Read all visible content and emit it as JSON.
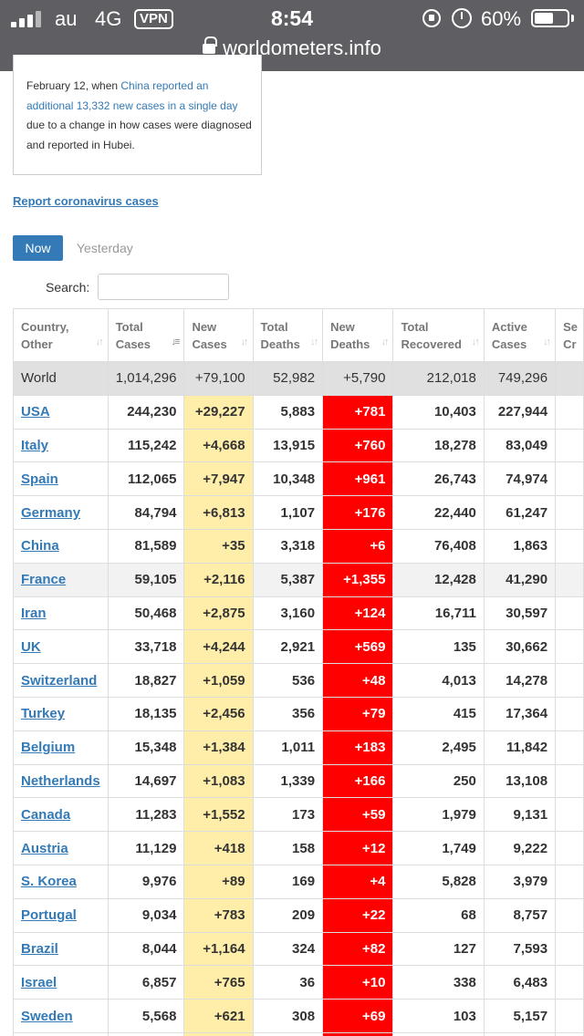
{
  "status_bar": {
    "carrier": "au",
    "network": "4G",
    "vpn": "VPN",
    "time": "8:54",
    "battery": "60%",
    "battery_level": 0.6
  },
  "url_bar": {
    "domain": "worldometers.info"
  },
  "note": {
    "text_before": "February 12, when ",
    "link_text": "China reported an additional 13,332 new cases in a single day",
    "text_after": " due to a change in how cases were diagnosed and reported in Hubei."
  },
  "report_link": "Report coronavirus cases",
  "tabs": {
    "now": "Now",
    "yesterday": "Yesterday"
  },
  "search": {
    "label": "Search:",
    "placeholder": ""
  },
  "table": {
    "headers": [
      [
        "Country,",
        "Other"
      ],
      [
        "Total",
        "Cases"
      ],
      [
        "New",
        "Cases"
      ],
      [
        "Total",
        "Deaths"
      ],
      [
        "New",
        "Deaths"
      ],
      [
        "Total",
        "Recovered"
      ],
      [
        "Active",
        "Cases"
      ],
      [
        "Se",
        "Cr"
      ]
    ],
    "world": [
      "World",
      "1,014,296",
      "+79,100",
      "52,982",
      "+5,790",
      "212,018",
      "749,296",
      ""
    ],
    "rows": [
      [
        "USA",
        "244,230",
        "+29,227",
        "5,883",
        "+781",
        "10,403",
        "227,944",
        ""
      ],
      [
        "Italy",
        "115,242",
        "+4,668",
        "13,915",
        "+760",
        "18,278",
        "83,049",
        ""
      ],
      [
        "Spain",
        "112,065",
        "+7,947",
        "10,348",
        "+961",
        "26,743",
        "74,974",
        ""
      ],
      [
        "Germany",
        "84,794",
        "+6,813",
        "1,107",
        "+176",
        "22,440",
        "61,247",
        ""
      ],
      [
        "China",
        "81,589",
        "+35",
        "3,318",
        "+6",
        "76,408",
        "1,863",
        ""
      ],
      [
        "France",
        "59,105",
        "+2,116",
        "5,387",
        "+1,355",
        "12,428",
        "41,290",
        ""
      ],
      [
        "Iran",
        "50,468",
        "+2,875",
        "3,160",
        "+124",
        "16,711",
        "30,597",
        ""
      ],
      [
        "UK",
        "33,718",
        "+4,244",
        "2,921",
        "+569",
        "135",
        "30,662",
        ""
      ],
      [
        "Switzerland",
        "18,827",
        "+1,059",
        "536",
        "+48",
        "4,013",
        "14,278",
        ""
      ],
      [
        "Turkey",
        "18,135",
        "+2,456",
        "356",
        "+79",
        "415",
        "17,364",
        ""
      ],
      [
        "Belgium",
        "15,348",
        "+1,384",
        "1,011",
        "+183",
        "2,495",
        "11,842",
        ""
      ],
      [
        "Netherlands",
        "14,697",
        "+1,083",
        "1,339",
        "+166",
        "250",
        "13,108",
        ""
      ],
      [
        "Canada",
        "11,283",
        "+1,552",
        "173",
        "+59",
        "1,979",
        "9,131",
        ""
      ],
      [
        "Austria",
        "11,129",
        "+418",
        "158",
        "+12",
        "1,749",
        "9,222",
        ""
      ],
      [
        "S. Korea",
        "9,976",
        "+89",
        "169",
        "+4",
        "5,828",
        "3,979",
        ""
      ],
      [
        "Portugal",
        "9,034",
        "+783",
        "209",
        "+22",
        "68",
        "8,757",
        ""
      ],
      [
        "Brazil",
        "8,044",
        "+1,164",
        "324",
        "+82",
        "127",
        "7,593",
        ""
      ],
      [
        "Israel",
        "6,857",
        "+765",
        "36",
        "+10",
        "338",
        "6,483",
        ""
      ],
      [
        "Sweden",
        "5,568",
        "+621",
        "308",
        "+69",
        "103",
        "5,157",
        ""
      ],
      [
        "",
        "",
        "",
        "",
        "",
        "",
        "",
        ""
      ]
    ],
    "highlight_rows": [
      5
    ]
  },
  "colors": {
    "link": "#337ab7",
    "new_cases_bg": "#ffeeaa",
    "new_deaths_bg": "#ff0000",
    "world_row_bg": "#e0e0e0",
    "topbar_bg": "#5f5f63"
  }
}
